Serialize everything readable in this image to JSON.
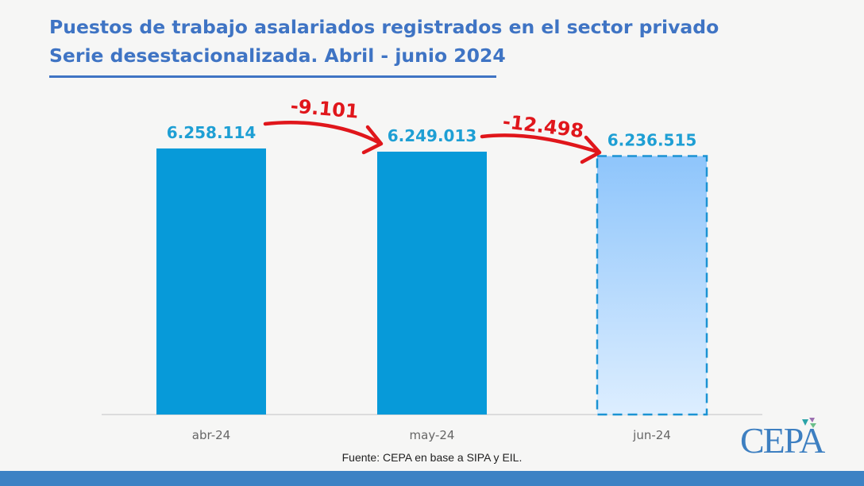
{
  "title_line1": "Puestos de trabajo asalariados registrados en el sector privado",
  "title_line2": "Serie desestacionalizada. Abril - junio 2024",
  "source": "Fuente: CEPA en base a SIPA y EIL.",
  "logo": "CEPA",
  "chart_data": {
    "type": "bar",
    "categories": [
      "abr-24",
      "may-24",
      "jun-24"
    ],
    "values": [
      6258114,
      6249013,
      6236515
    ],
    "data_labels": [
      "6.258.114",
      "6.249.013",
      "6.236.515"
    ],
    "ylim": [
      5500000,
      6387000
    ],
    "grid": false,
    "colors": {
      "bar": "#079ad9",
      "projected_bar_top": "#8ec5fb",
      "projected_bar_bottom": "#ddeeff",
      "projected_border": "#1b93d3",
      "label": "#1e9fd4",
      "annotation": "#e0161b"
    },
    "projected": [
      false,
      false,
      true
    ],
    "annotations": [
      {
        "text": "-9.101",
        "from": "abr-24",
        "to": "may-24"
      },
      {
        "text": "-12.498",
        "from": "may-24",
        "to": "jun-24"
      }
    ]
  }
}
